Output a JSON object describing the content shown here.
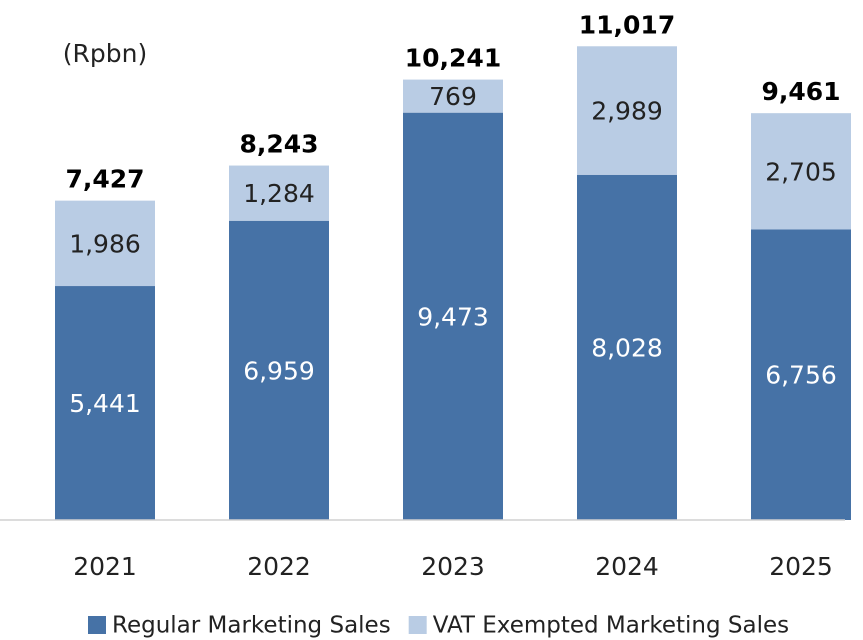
{
  "chart_data": {
    "type": "stacked_bar",
    "unit_label": "(Rpbn)",
    "categories": [
      "2021",
      "2022",
      "2023",
      "2024",
      "2025"
    ],
    "series": [
      {
        "name": "Regular Marketing Sales",
        "color": "#4672a6",
        "values": [
          5441,
          6959,
          9473,
          8028,
          6756
        ],
        "value_labels": [
          "5,441",
          "6,959",
          "9,473",
          "8,028",
          "6,756"
        ]
      },
      {
        "name": "VAT Exempted Marketing Sales",
        "color": "#b9cce4",
        "values": [
          1986,
          1284,
          769,
          2989,
          2705
        ],
        "value_labels": [
          "1,986",
          "1,284",
          "769",
          "2,989",
          "2,705"
        ]
      }
    ],
    "totals": {
      "values": [
        7427,
        8243,
        10241,
        11017,
        9461
      ],
      "value_labels": [
        "7,427",
        "8,243",
        "10,241",
        "11,017",
        "9,461"
      ]
    },
    "ylim": [
      0,
      12000
    ],
    "legend": "bottom"
  }
}
